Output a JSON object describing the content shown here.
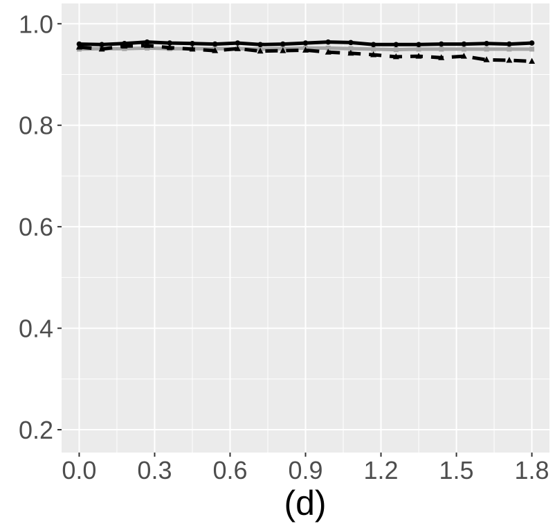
{
  "chart_data": {
    "type": "line",
    "title": "",
    "xlabel": "(d)",
    "ylabel": "",
    "xlim": [
      -0.07,
      1.87
    ],
    "ylim": [
      0.155,
      1.04
    ],
    "x_ticks": [
      0.0,
      0.3,
      0.6,
      0.9,
      1.2,
      1.5,
      1.8
    ],
    "x_tick_labels": [
      "0.0",
      "0.3",
      "0.6",
      "0.9",
      "1.2",
      "1.5",
      "1.8"
    ],
    "y_ticks": [
      0.2,
      0.4,
      0.6,
      0.8,
      1.0
    ],
    "y_tick_labels": [
      "0.2",
      "0.4",
      "0.6",
      "0.8",
      "1.0"
    ],
    "grid": true,
    "legend": "none",
    "colors": {
      "panel": "#ebebeb",
      "grid": "#ffffff",
      "black": "#000000",
      "gray": "#a6a6a6"
    },
    "series": [
      {
        "style": "solid-black-circle",
        "x": [
          0.0,
          0.09,
          0.18,
          0.27,
          0.36,
          0.45,
          0.54,
          0.63,
          0.72,
          0.81,
          0.9,
          0.99,
          1.08,
          1.17,
          1.26,
          1.35,
          1.44,
          1.53,
          1.62,
          1.71,
          1.8
        ],
        "y": [
          0.96,
          0.959,
          0.961,
          0.964,
          0.962,
          0.961,
          0.96,
          0.962,
          0.959,
          0.96,
          0.962,
          0.964,
          0.963,
          0.959,
          0.959,
          0.959,
          0.96,
          0.96,
          0.961,
          0.96,
          0.962
        ]
      },
      {
        "style": "dashed-black-triangle",
        "x": [
          0.0,
          0.09,
          0.18,
          0.27,
          0.36,
          0.45,
          0.54,
          0.63,
          0.72,
          0.81,
          0.9,
          0.99,
          1.08,
          1.17,
          1.26,
          1.35,
          1.44,
          1.53,
          1.62,
          1.71,
          1.8
        ],
        "y": [
          0.954,
          0.95,
          0.956,
          0.957,
          0.953,
          0.95,
          0.947,
          0.951,
          0.946,
          0.947,
          0.948,
          0.944,
          0.942,
          0.939,
          0.935,
          0.936,
          0.933,
          0.936,
          0.929,
          0.928,
          0.926
        ]
      },
      {
        "style": "solid-gray-square",
        "x": [
          0.0,
          0.09,
          0.18,
          0.27,
          0.36,
          0.45,
          0.54,
          0.63,
          0.72,
          0.81,
          0.9,
          0.99,
          1.08,
          1.17,
          1.26,
          1.35,
          1.44,
          1.53,
          1.62,
          1.71,
          1.8
        ],
        "y": [
          0.95,
          0.951,
          0.951,
          0.952,
          0.951,
          0.951,
          0.951,
          0.951,
          0.95,
          0.951,
          0.952,
          0.952,
          0.951,
          0.95,
          0.949,
          0.95,
          0.95,
          0.95,
          0.95,
          0.95,
          0.95
        ]
      }
    ]
  }
}
